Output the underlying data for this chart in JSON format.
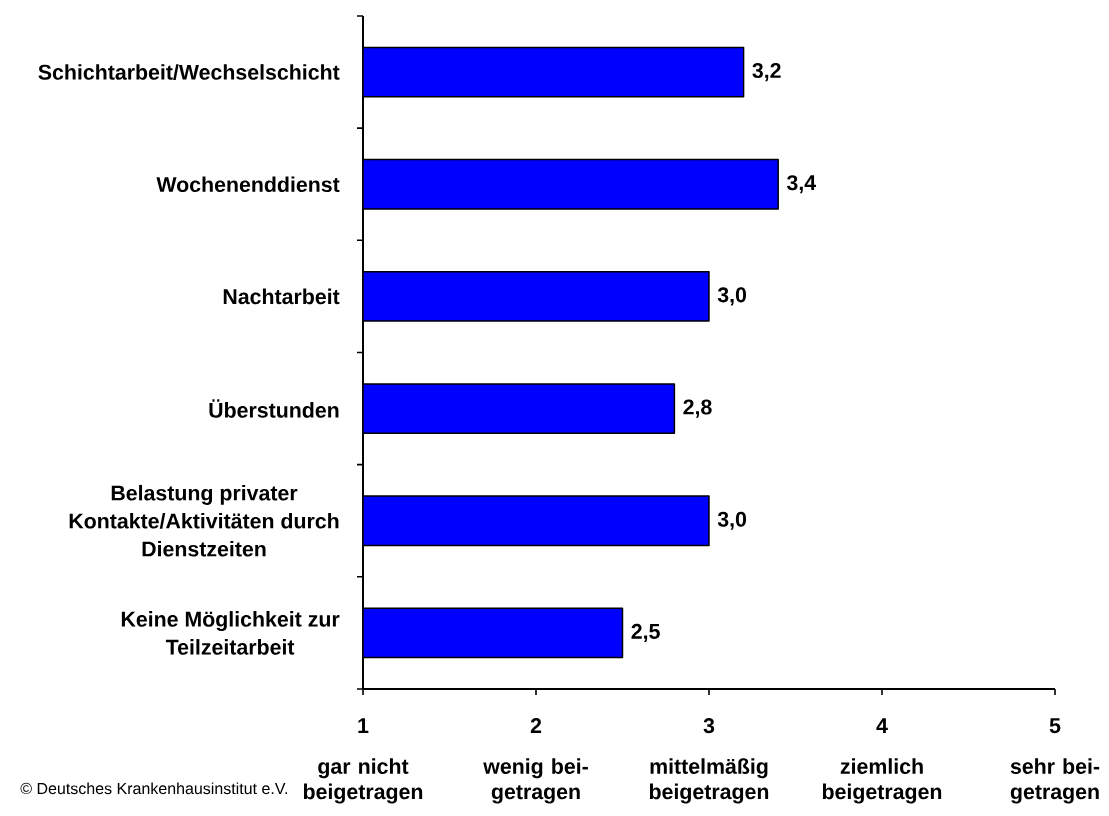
{
  "chart_data": {
    "type": "bar",
    "orientation": "horizontal",
    "categories": [
      "Schichtarbeit/Wechselschicht",
      "Wochenenddienst",
      "Nachtarbeit",
      "Überstunden",
      "Belastung privater Kontakte/Aktivitäten durch Dienstzeiten",
      "Keine Möglichkeit zur Teilzeitarbeit"
    ],
    "values": [
      3.2,
      3.4,
      3.0,
      2.8,
      3.0,
      2.5
    ],
    "value_labels": [
      "3,2",
      "3,4",
      "3,0",
      "2,8",
      "3,0",
      "2,5"
    ],
    "color": "#0000ff",
    "xlim": [
      1,
      5
    ],
    "xticks": [
      1,
      2,
      3,
      4,
      5
    ],
    "annotations": [
      "© Deutsches Krankenhausinstitut e.V.",
      "gar nicht beigetragen",
      "wenig bei-getragen",
      "mittelmäßig beigetragen",
      "ziemlich beigetragen",
      "sehr bei-getragen"
    ]
  }
}
